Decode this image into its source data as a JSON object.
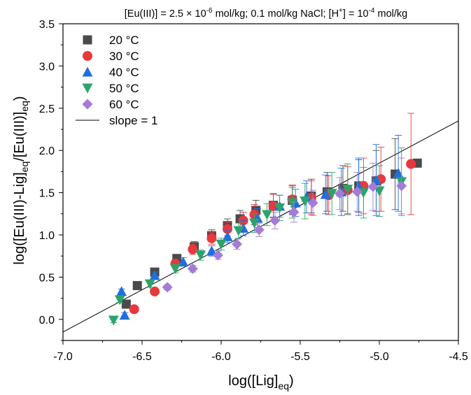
{
  "chart_data": {
    "type": "scatter",
    "title_parts": {
      "p1": "[Eu(III)] = 2.5 × 10",
      "p1_sup": "-6",
      "p2": " mol/kg; 0.1 mol/kg NaCl; [H",
      "p2_sup": "+",
      "p3": "] = 10",
      "p3_sup": "-4",
      "p4": " mol/kg"
    },
    "xlabel": {
      "main": "log([Lig]",
      "sub": "eq",
      "end": ")"
    },
    "ylabel": {
      "a": "log([Eu(III)-Lig]",
      "a_sub": "eq",
      "b": "/[Eu(III)]",
      "b_sub": "eq",
      "c": ")"
    },
    "xlim": [
      -7.0,
      -4.5
    ],
    "ylim": [
      -0.25,
      3.5
    ],
    "xticks": [
      "-7.0",
      "-6.5",
      "-6.0",
      "-5.5",
      "-5.0",
      "-4.5"
    ],
    "yticks": [
      "0.0",
      "0.5",
      "1.0",
      "1.5",
      "2.0",
      "2.5",
      "3.0",
      "3.5"
    ],
    "grid": false,
    "legend_position": "top-left",
    "line": {
      "name": "slope = 1",
      "x": [
        -7.0,
        -4.5
      ],
      "y": [
        -0.15,
        2.35
      ],
      "color": "#000000"
    },
    "series": [
      {
        "name": "20 °C",
        "marker": "square",
        "color": "#4a4a4a",
        "points": [
          {
            "x": -6.6,
            "y": 0.18,
            "err": 0.03
          },
          {
            "x": -6.53,
            "y": 0.4,
            "err": 0.03
          },
          {
            "x": -6.42,
            "y": 0.56,
            "err": 0.04
          },
          {
            "x": -6.28,
            "y": 0.72,
            "err": 0.05
          },
          {
            "x": -6.17,
            "y": 0.86,
            "err": 0.06
          },
          {
            "x": -6.06,
            "y": 0.99,
            "err": 0.07
          },
          {
            "x": -5.96,
            "y": 1.11,
            "err": 0.08
          },
          {
            "x": -5.88,
            "y": 1.19,
            "err": 0.1
          },
          {
            "x": -5.78,
            "y": 1.29,
            "err": 0.12
          },
          {
            "x": -5.67,
            "y": 1.35,
            "err": 0.14
          },
          {
            "x": -5.55,
            "y": 1.41,
            "err": 0.17
          },
          {
            "x": -5.43,
            "y": 1.46,
            "err": 0.2
          },
          {
            "x": -5.33,
            "y": 1.51,
            "err": 0.23
          },
          {
            "x": -5.23,
            "y": 1.55,
            "err": 0.27
          },
          {
            "x": -5.13,
            "y": 1.58,
            "err": 0.31
          },
          {
            "x": -5.02,
            "y": 1.64,
            "err": 0.36
          },
          {
            "x": -4.9,
            "y": 1.72,
            "err": 0.42
          },
          {
            "x": -4.76,
            "y": 1.85,
            "err": 0.02
          }
        ]
      },
      {
        "name": "30 °C",
        "marker": "circle",
        "color": "#e8383d",
        "points": [
          {
            "x": -6.55,
            "y": 0.12,
            "err": 0.03
          },
          {
            "x": -6.42,
            "y": 0.33,
            "err": 0.03
          },
          {
            "x": -6.29,
            "y": 0.66,
            "err": 0.05
          },
          {
            "x": -6.18,
            "y": 0.83,
            "err": 0.06
          },
          {
            "x": -6.06,
            "y": 0.96,
            "err": 0.07
          },
          {
            "x": -5.96,
            "y": 1.07,
            "err": 0.08
          },
          {
            "x": -5.86,
            "y": 1.17,
            "err": 0.1
          },
          {
            "x": -5.79,
            "y": 1.24,
            "err": 0.12
          },
          {
            "x": -5.67,
            "y": 1.34,
            "err": 0.14
          },
          {
            "x": -5.55,
            "y": 1.42,
            "err": 0.17
          },
          {
            "x": -5.43,
            "y": 1.44,
            "err": 0.2
          },
          {
            "x": -5.32,
            "y": 1.47,
            "err": 0.23
          },
          {
            "x": -5.2,
            "y": 1.53,
            "err": 0.28
          },
          {
            "x": -5.1,
            "y": 1.58,
            "err": 0.33
          },
          {
            "x": -4.99,
            "y": 1.66,
            "err": 0.38
          },
          {
            "x": -4.8,
            "y": 1.84,
            "err": 0.6
          }
        ]
      },
      {
        "name": "40 °C",
        "marker": "triangle",
        "color": "#1f6fde",
        "points": [
          {
            "x": -6.63,
            "y": 0.33,
            "err": 0.03
          },
          {
            "x": -6.61,
            "y": 0.05,
            "err": 0.03
          },
          {
            "x": -6.42,
            "y": 0.52,
            "err": 0.04
          },
          {
            "x": -6.24,
            "y": 0.68,
            "err": 0.05
          },
          {
            "x": -6.06,
            "y": 0.81,
            "err": 0.06
          },
          {
            "x": -5.96,
            "y": 0.98,
            "err": 0.07
          },
          {
            "x": -5.86,
            "y": 1.08,
            "err": 0.09
          },
          {
            "x": -5.77,
            "y": 1.2,
            "err": 0.11
          },
          {
            "x": -5.63,
            "y": 1.34,
            "err": 0.13
          },
          {
            "x": -5.53,
            "y": 1.38,
            "err": 0.16
          },
          {
            "x": -5.46,
            "y": 1.45,
            "err": 0.19
          },
          {
            "x": -5.34,
            "y": 1.48,
            "err": 0.23
          },
          {
            "x": -5.24,
            "y": 1.51,
            "err": 0.28
          },
          {
            "x": -5.13,
            "y": 1.57,
            "err": 0.34
          },
          {
            "x": -5.02,
            "y": 1.65,
            "err": 0.42
          },
          {
            "x": -4.88,
            "y": 1.73,
            "err": 0.45
          }
        ]
      },
      {
        "name": "50 °C",
        "marker": "triangle-down",
        "color": "#2ca36b",
        "points": [
          {
            "x": -6.68,
            "y": -0.01,
            "err": 0.03
          },
          {
            "x": -6.64,
            "y": 0.23,
            "err": 0.03
          },
          {
            "x": -6.45,
            "y": 0.42,
            "err": 0.04
          },
          {
            "x": -6.29,
            "y": 0.6,
            "err": 0.05
          },
          {
            "x": -6.13,
            "y": 0.76,
            "err": 0.06
          },
          {
            "x": -6.0,
            "y": 0.89,
            "err": 0.07
          },
          {
            "x": -5.89,
            "y": 1.05,
            "err": 0.09
          },
          {
            "x": -5.79,
            "y": 1.14,
            "err": 0.11
          },
          {
            "x": -5.71,
            "y": 1.24,
            "err": 0.13
          },
          {
            "x": -5.63,
            "y": 1.32,
            "err": 0.15
          },
          {
            "x": -5.55,
            "y": 1.38,
            "err": 0.18
          },
          {
            "x": -5.47,
            "y": 1.4,
            "err": 0.21
          },
          {
            "x": -5.3,
            "y": 1.49,
            "err": 0.25
          },
          {
            "x": -5.2,
            "y": 1.54,
            "err": 0.3
          },
          {
            "x": -5.1,
            "y": 1.5,
            "err": 0.3
          },
          {
            "x": -5.0,
            "y": 1.52,
            "err": 0.3
          },
          {
            "x": -4.86,
            "y": 1.63,
            "err": 0.4
          }
        ]
      },
      {
        "name": "60 °C",
        "marker": "diamond",
        "color": "#a47bd6",
        "points": [
          {
            "x": -6.34,
            "y": 0.38,
            "err": 0.03
          },
          {
            "x": -6.18,
            "y": 0.6,
            "err": 0.04
          },
          {
            "x": -6.02,
            "y": 0.76,
            "err": 0.05
          },
          {
            "x": -5.9,
            "y": 0.89,
            "err": 0.06
          },
          {
            "x": -5.76,
            "y": 1.06,
            "err": 0.08
          },
          {
            "x": -5.66,
            "y": 1.17,
            "err": 0.1
          },
          {
            "x": -5.54,
            "y": 1.27,
            "err": 0.12
          },
          {
            "x": -5.42,
            "y": 1.38,
            "err": 0.15
          },
          {
            "x": -5.25,
            "y": 1.49,
            "err": 0.19
          },
          {
            "x": -5.14,
            "y": 1.51,
            "err": 0.23
          },
          {
            "x": -5.04,
            "y": 1.57,
            "err": 0.28
          },
          {
            "x": -4.86,
            "y": 1.58,
            "err": 0.33
          }
        ]
      }
    ]
  }
}
